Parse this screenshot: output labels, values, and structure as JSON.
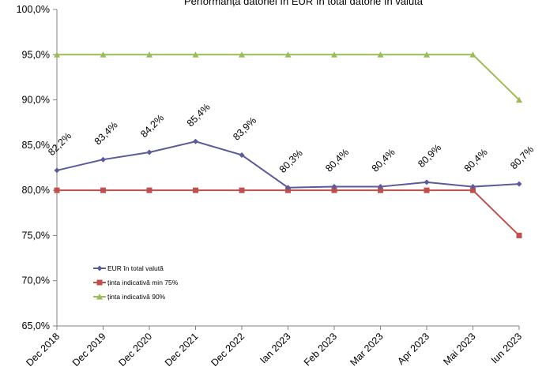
{
  "chart_data": {
    "type": "line",
    "title": "Performanța datoriei în EUR în total datorie în valută",
    "xlabel": "",
    "ylabel": "",
    "categories": [
      "Dec 2018",
      "Dec 2019",
      "Dec 2020",
      "Dec 2021",
      "Dec 2022",
      "Ian 2023",
      "Feb 2023",
      "Mar 2023",
      "Apr 2023",
      "Mai 2023",
      "Iun 2023"
    ],
    "ylim": [
      65,
      100
    ],
    "yticks": [
      65,
      70,
      75,
      80,
      85,
      90,
      95,
      100
    ],
    "ytick_labels": [
      "65,0%",
      "70,0%",
      "75,0%",
      "80,0%",
      "85,0%",
      "90,0%",
      "95,0%",
      "100,0%"
    ],
    "grid": false,
    "legend_position": "bottom-left",
    "series": [
      {
        "name": "EUR în total valută",
        "color": "#5B5B9B",
        "marker": "diamond",
        "values": [
          82.2,
          83.4,
          84.2,
          85.4,
          83.9,
          80.3,
          80.4,
          80.4,
          80.9,
          80.4,
          80.7
        ],
        "data_labels": [
          "82,2%",
          "83,4%",
          "84,2%",
          "85,4%",
          "83,9%",
          "80,3%",
          "80,4%",
          "80,4%",
          "80,9%",
          "80,4%",
          "80,7%"
        ]
      },
      {
        "name": "ținta indicativă min 75%",
        "color": "#C0504D",
        "marker": "square",
        "values": [
          80,
          80,
          80,
          80,
          80,
          80,
          80,
          80,
          80,
          80,
          75
        ]
      },
      {
        "name": "ținta indicativă  90%",
        "color": "#9BBB59",
        "marker": "triangle",
        "values": [
          95,
          95,
          95,
          95,
          95,
          95,
          95,
          95,
          95,
          95,
          90
        ]
      }
    ]
  }
}
